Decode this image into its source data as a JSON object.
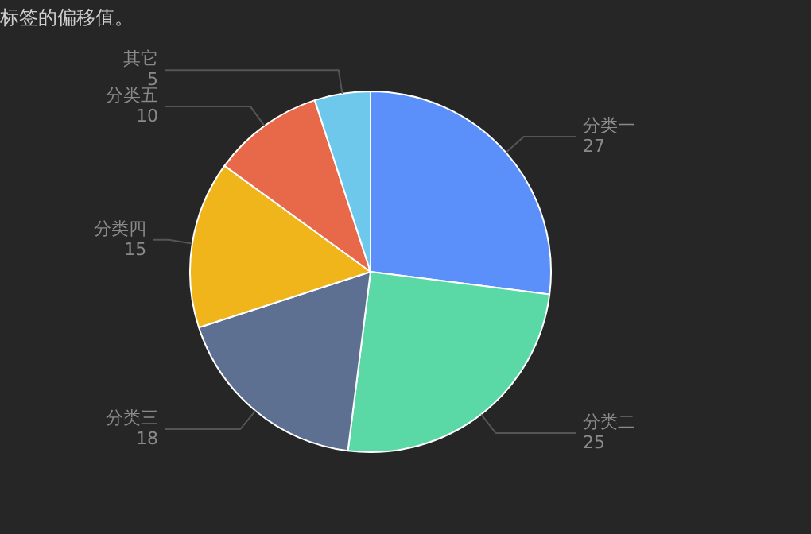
{
  "chart_data": {
    "type": "pie",
    "subtitle": "标签的偏移值。",
    "categories": [
      "分类一",
      "分类二",
      "分类三",
      "分类四",
      "分类五",
      "其它"
    ],
    "values": [
      27,
      25,
      18,
      15,
      10,
      5
    ],
    "colors": [
      "#5b8ff9",
      "#5ad8a6",
      "#5d7092",
      "#f0b51b",
      "#e8684a",
      "#6dc8ec"
    ],
    "data_labels": true,
    "legend": false
  }
}
